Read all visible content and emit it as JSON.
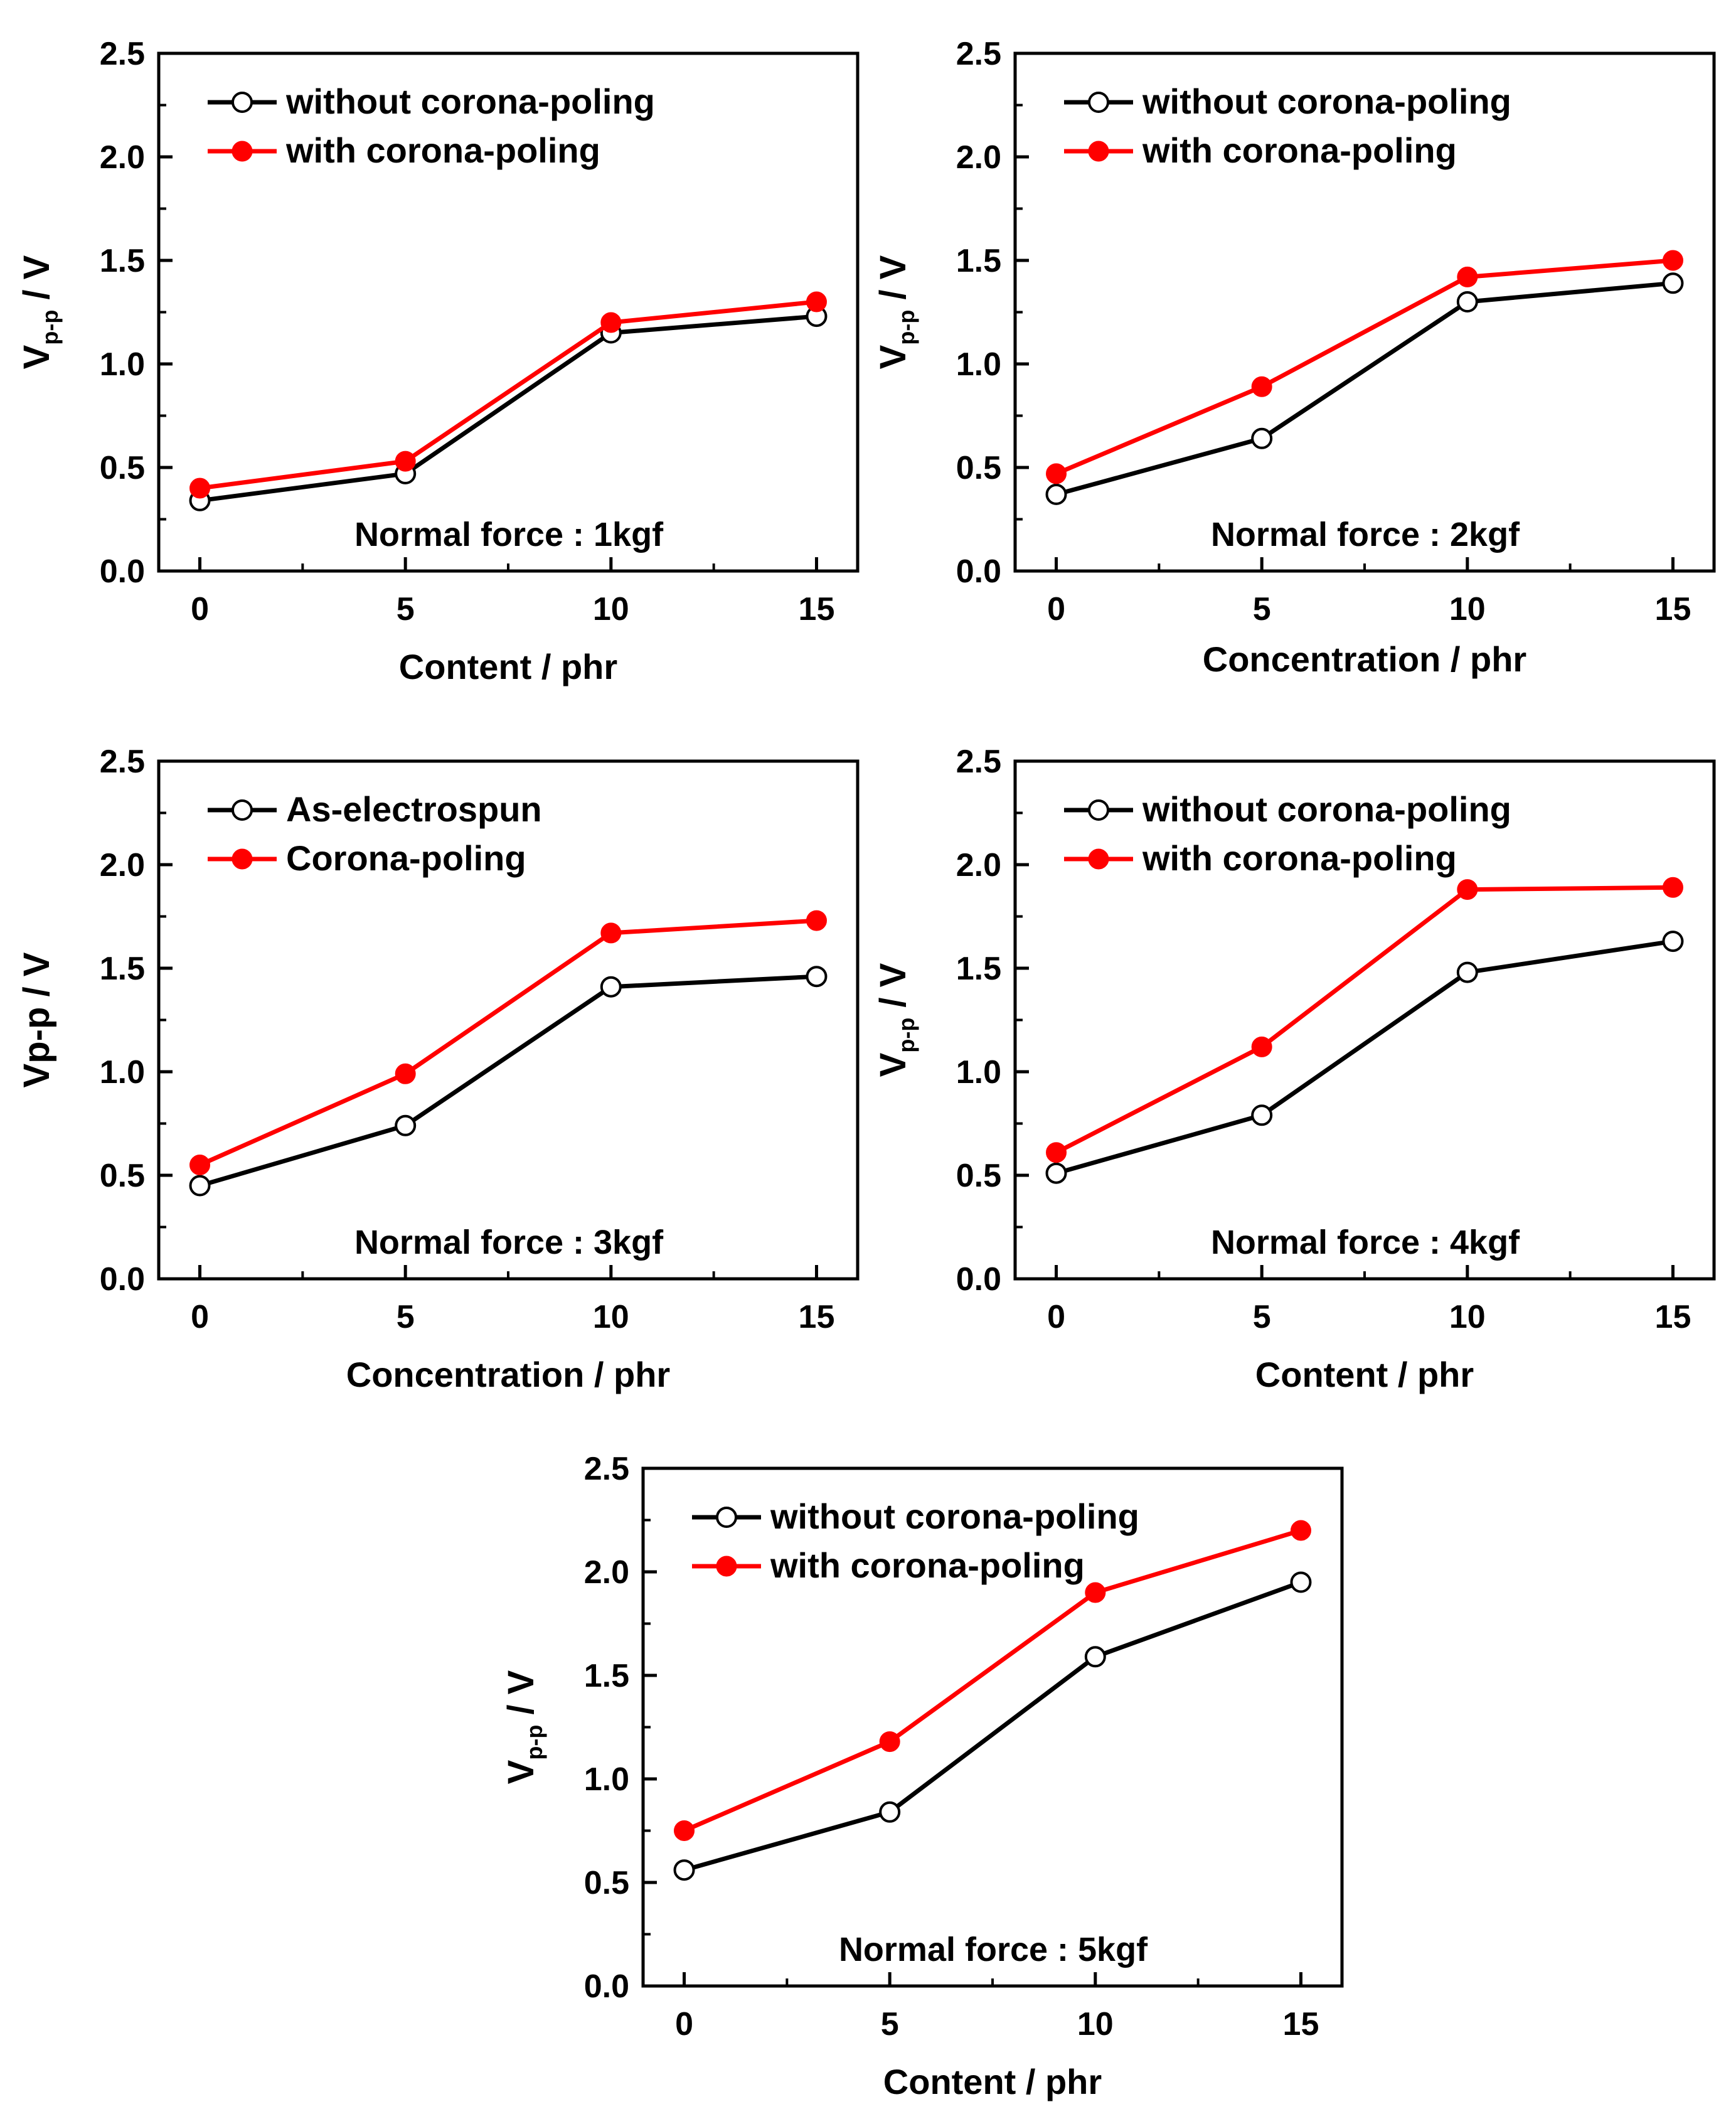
{
  "colors": {
    "without": "#000000",
    "with": "#ff0000",
    "marker_open_fill": "#ffffff"
  },
  "chart_data": [
    {
      "type": "line",
      "categories": [
        "0",
        "5",
        "10",
        "15"
      ],
      "x": [
        0,
        5,
        10,
        15
      ],
      "xlim": [
        -1,
        16
      ],
      "ylim": [
        0,
        2.5
      ],
      "yticks": [
        "0.0",
        "0.5",
        "1.0",
        "1.5",
        "2.0",
        "2.5"
      ],
      "xticks": [
        "0",
        "5",
        "10",
        "15"
      ],
      "xlabel": "Content / phr",
      "ylabel": {
        "main": "V",
        "sub": "p-p",
        "rest": " / V"
      },
      "annotation": "Normal force : 1kgf",
      "series": [
        {
          "name": "without corona-poling",
          "marker": "open",
          "color": "#000000",
          "values": [
            0.34,
            0.47,
            1.15,
            1.23
          ]
        },
        {
          "name": "with corona-poling",
          "marker": "filled",
          "color": "#ff0000",
          "values": [
            0.4,
            0.53,
            1.2,
            1.3
          ]
        }
      ]
    },
    {
      "type": "line",
      "categories": [
        "0",
        "5",
        "10",
        "15"
      ],
      "x": [
        0,
        5,
        10,
        15
      ],
      "xlim": [
        -1,
        16
      ],
      "ylim": [
        0,
        2.5
      ],
      "yticks": [
        "0.0",
        "0.5",
        "1.0",
        "1.5",
        "2.0",
        "2.5"
      ],
      "xticks": [
        "0",
        "5",
        "10",
        "15"
      ],
      "xlabel": "Concentration / phr",
      "ylabel": {
        "main": "V",
        "sub": "p-p",
        "rest": " / V"
      },
      "annotation": "Normal force : 2kgf",
      "series": [
        {
          "name": "without corona-poling",
          "marker": "open",
          "color": "#000000",
          "values": [
            0.37,
            0.64,
            1.3,
            1.39
          ]
        },
        {
          "name": "with corona-poling",
          "marker": "filled",
          "color": "#ff0000",
          "values": [
            0.47,
            0.89,
            1.42,
            1.5
          ]
        }
      ]
    },
    {
      "type": "line",
      "categories": [
        "0",
        "5",
        "10",
        "15"
      ],
      "x": [
        0,
        5,
        10,
        15
      ],
      "xlim": [
        -1,
        16
      ],
      "ylim": [
        0,
        2.5
      ],
      "yticks": [
        "0.0",
        "0.5",
        "1.0",
        "1.5",
        "2.0",
        "2.5"
      ],
      "xticks": [
        "0",
        "5",
        "10",
        "15"
      ],
      "xlabel": "Concentration / phr",
      "ylabel": {
        "main": "Vp-p / V",
        "sub": "",
        "rest": ""
      },
      "annotation": "Normal force : 3kgf",
      "series": [
        {
          "name": "As-electrospun",
          "marker": "open",
          "color": "#000000",
          "values": [
            0.45,
            0.74,
            1.41,
            1.46
          ]
        },
        {
          "name": "Corona-poling",
          "marker": "filled",
          "color": "#ff0000",
          "values": [
            0.55,
            0.99,
            1.67,
            1.73
          ]
        }
      ]
    },
    {
      "type": "line",
      "categories": [
        "0",
        "5",
        "10",
        "15"
      ],
      "x": [
        0,
        5,
        10,
        15
      ],
      "xlim": [
        -1,
        16
      ],
      "ylim": [
        0,
        2.5
      ],
      "yticks": [
        "0.0",
        "0.5",
        "1.0",
        "1.5",
        "2.0",
        "2.5"
      ],
      "xticks": [
        "0",
        "5",
        "10",
        "15"
      ],
      "xlabel": "Content / phr",
      "ylabel": {
        "main": "V",
        "sub": "p-p",
        "rest": " / V"
      },
      "annotation": "Normal force : 4kgf",
      "series": [
        {
          "name": "without corona-poling",
          "marker": "open",
          "color": "#000000",
          "values": [
            0.51,
            0.79,
            1.48,
            1.63
          ]
        },
        {
          "name": "with corona-poling",
          "marker": "filled",
          "color": "#ff0000",
          "values": [
            0.61,
            1.12,
            1.88,
            1.89
          ]
        }
      ]
    },
    {
      "type": "line",
      "categories": [
        "0",
        "5",
        "10",
        "15"
      ],
      "x": [
        0,
        5,
        10,
        15
      ],
      "xlim": [
        -1,
        16
      ],
      "ylim": [
        0,
        2.5
      ],
      "yticks": [
        "0.0",
        "0.5",
        "1.0",
        "1.5",
        "2.0",
        "2.5"
      ],
      "xticks": [
        "0",
        "5",
        "10",
        "15"
      ],
      "xlabel": "Content / phr",
      "ylabel": {
        "main": "V",
        "sub": "p-p",
        "rest": " / V"
      },
      "annotation": "Normal force : 5kgf",
      "series": [
        {
          "name": "without corona-poling",
          "marker": "open",
          "color": "#000000",
          "values": [
            0.56,
            0.84,
            1.59,
            1.95
          ]
        },
        {
          "name": "with corona-poling",
          "marker": "filled",
          "color": "#ff0000",
          "values": [
            0.75,
            1.18,
            1.9,
            2.2
          ]
        }
      ]
    }
  ]
}
